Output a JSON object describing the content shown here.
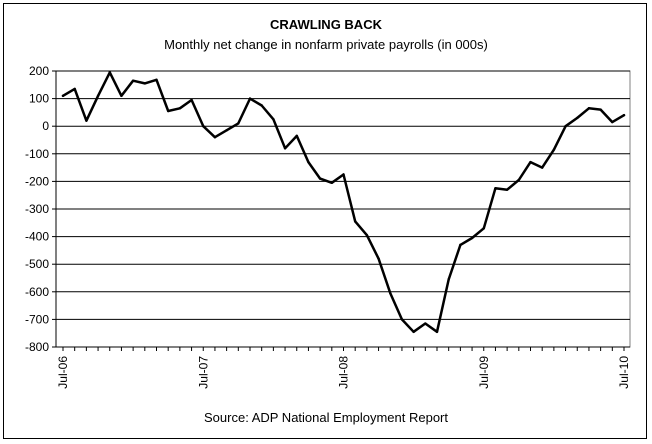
{
  "chart_data": {
    "type": "line",
    "title": "CRAWLING BACK",
    "subtitle": "Monthly net change in nonfarm private payrolls (in 000s)",
    "source": "Source: ADP National Employment Report",
    "ylim": [
      -800,
      200
    ],
    "yticks": [
      "200",
      "100",
      "0",
      "-100",
      "-200",
      "-300",
      "-400",
      "-500",
      "-600",
      "-700",
      "-800"
    ],
    "xticks": [
      {
        "label": "Jul-06",
        "index": 0
      },
      {
        "label": "Jul-07",
        "index": 12
      },
      {
        "label": "Jul-08",
        "index": 24
      },
      {
        "label": "Jul-09",
        "index": 36
      },
      {
        "label": "Jul-10",
        "index": 48
      }
    ],
    "grid": "horizontal",
    "line_color": "#000000",
    "series": [
      {
        "values": [
          110,
          135,
          20,
          110,
          195,
          110,
          165,
          155,
          168,
          55,
          65,
          95,
          0,
          -40,
          -15,
          10,
          100,
          75,
          25,
          -80,
          -35,
          -130,
          -190,
          -205,
          -175,
          -345,
          -395,
          -480,
          -605,
          -700,
          -745,
          -715,
          -745,
          -555,
          -430,
          -405,
          -370,
          -225,
          -230,
          -195,
          -130,
          -150,
          -85,
          0,
          30,
          65,
          60,
          15,
          40
        ]
      }
    ]
  }
}
